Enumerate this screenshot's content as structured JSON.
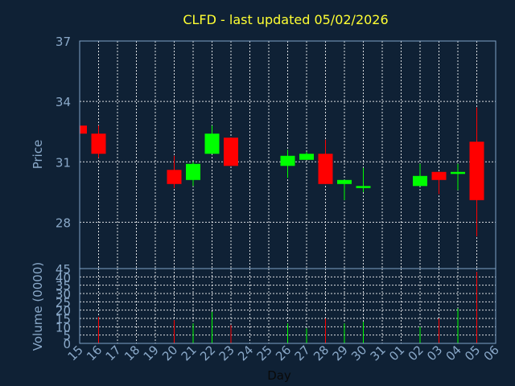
{
  "chart_data": {
    "type": "candlestick",
    "title": "CLFD - last updated 05/02/2026",
    "xlabel": "Day",
    "price_panel": {
      "ylabel": "Price",
      "ylim": [
        25.7,
        37
      ],
      "yticks": [
        28,
        31,
        34,
        37
      ]
    },
    "volume_panel": {
      "ylabel": "Volume (0000)",
      "ylim": [
        0,
        45
      ],
      "yticks": [
        0,
        5,
        10,
        15,
        20,
        25,
        30,
        35,
        40,
        45
      ]
    },
    "x_ticks": [
      "15",
      "16",
      "17",
      "18",
      "19",
      "20",
      "21",
      "22",
      "23",
      "24",
      "25",
      "26",
      "27",
      "28",
      "29",
      "30",
      "31",
      "01",
      "02",
      "03",
      "04",
      "05",
      "06"
    ],
    "grid": true,
    "colors": {
      "up": "#00ff00",
      "down": "#ff0000",
      "grid": "#ffffff",
      "frame": "#7fa3c7",
      "title": "#ffff33",
      "text": "#8aa9c9",
      "background": "#0f2135"
    },
    "candles": [
      {
        "day": "15",
        "open": 32.8,
        "close": 32.4,
        "high": 32.8,
        "low": 32.4,
        "volume": 0
      },
      {
        "day": "16",
        "open": 32.4,
        "close": 31.4,
        "high": 32.8,
        "low": 31.2,
        "volume": 16
      },
      {
        "day": "20",
        "open": 30.6,
        "close": 29.9,
        "high": 31.3,
        "low": 29.7,
        "volume": 14
      },
      {
        "day": "21",
        "open": 30.1,
        "close": 30.9,
        "high": 31.0,
        "low": 29.8,
        "volume": 12
      },
      {
        "day": "22",
        "open": 31.4,
        "close": 32.4,
        "high": 32.8,
        "low": 31.4,
        "volume": 19
      },
      {
        "day": "23",
        "open": 32.2,
        "close": 30.8,
        "high": 32.2,
        "low": 30.8,
        "volume": 11
      },
      {
        "day": "26",
        "open": 30.8,
        "close": 31.3,
        "high": 31.6,
        "low": 30.2,
        "volume": 12
      },
      {
        "day": "27",
        "open": 31.1,
        "close": 31.4,
        "high": 31.5,
        "low": 31.1,
        "volume": 9
      },
      {
        "day": "28",
        "open": 31.4,
        "close": 29.9,
        "high": 32.1,
        "low": 29.9,
        "volume": 15
      },
      {
        "day": "29",
        "open": 29.9,
        "close": 30.1,
        "high": 30.1,
        "low": 29.1,
        "volume": 12
      },
      {
        "day": "30",
        "open": 29.7,
        "close": 29.8,
        "high": 30.7,
        "low": 29.5,
        "volume": 13
      },
      {
        "day": "02",
        "open": 29.8,
        "close": 30.3,
        "high": 30.9,
        "low": 29.8,
        "volume": 10
      },
      {
        "day": "03",
        "open": 30.5,
        "close": 30.1,
        "high": 30.5,
        "low": 29.4,
        "volume": 15
      },
      {
        "day": "04",
        "open": 30.4,
        "close": 30.5,
        "high": 30.9,
        "low": 29.6,
        "volume": 21
      },
      {
        "day": "05",
        "open": 32.0,
        "close": 29.1,
        "high": 33.7,
        "low": 27.3,
        "volume": 43
      }
    ]
  }
}
